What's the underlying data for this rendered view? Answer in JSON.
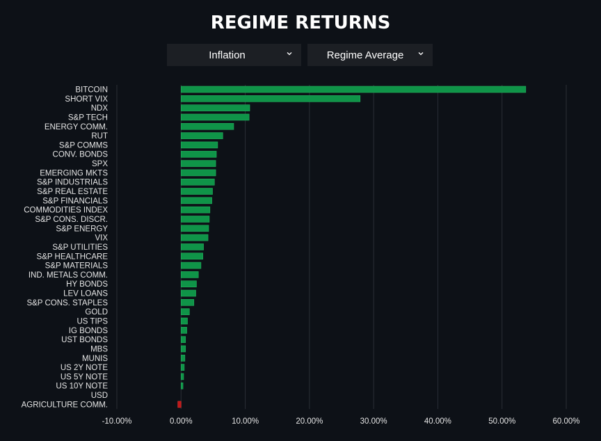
{
  "title": "REGIME RETURNS",
  "controls": {
    "regime_select": {
      "value": "Inflation",
      "icon": "chevron-down-icon"
    },
    "metric_select": {
      "value": "Regime Average",
      "icon": "chevron-down-icon"
    }
  },
  "colors": {
    "background": "#0d1117",
    "positive": "#0f9448",
    "negative": "#c01919",
    "grid": "#2a2f36",
    "dropdown_bg": "#1c1f24"
  },
  "chart_data": {
    "type": "bar",
    "orientation": "horizontal",
    "title": "REGIME RETURNS",
    "xlim": [
      -0.1,
      0.6
    ],
    "xticks": [
      -0.1,
      0,
      0.1,
      0.2,
      0.3,
      0.4,
      0.5,
      0.6
    ],
    "xtick_labels": [
      "-10.00%",
      "0.00%",
      "10.00%",
      "20.00%",
      "30.00%",
      "40.00%",
      "50.00%",
      "60.00%"
    ],
    "grid": true,
    "categories": [
      "BITCOIN",
      "SHORT VIX",
      "NDX",
      "S&P TECH",
      "ENERGY COMM.",
      "RUT",
      "S&P COMMS",
      "CONV. BONDS",
      "SPX",
      "EMERGING MKTS",
      "S&P INDUSTRIALS",
      "S&P REAL ESTATE",
      "S&P FINANCIALS",
      "COMMODITIES INDEX",
      "S&P CONS. DISCR.",
      "S&P ENERGY",
      "VIX",
      "S&P UTILITIES",
      "S&P HEALTHCARE",
      "S&P MATERIALS",
      "IND. METALS COMM.",
      "HY BONDS",
      "LEV LOANS",
      "S&P CONS. STAPLES",
      "GOLD",
      "US TIPS",
      "IG BONDS",
      "UST BONDS",
      "MBS",
      "MUNIS",
      "US 2Y NOTE",
      "US 5Y NOTE",
      "US 10Y NOTE",
      "USD",
      "AGRICULTURE COMM."
    ],
    "values": [
      0.537,
      0.279,
      0.107,
      0.106,
      0.082,
      0.065,
      0.057,
      0.055,
      0.054,
      0.054,
      0.052,
      0.049,
      0.048,
      0.045,
      0.044,
      0.043,
      0.042,
      0.035,
      0.034,
      0.031,
      0.027,
      0.024,
      0.023,
      0.02,
      0.013,
      0.01,
      0.009,
      0.007,
      0.007,
      0.006,
      0.005,
      0.004,
      0.003,
      0.0,
      -0.005
    ]
  }
}
